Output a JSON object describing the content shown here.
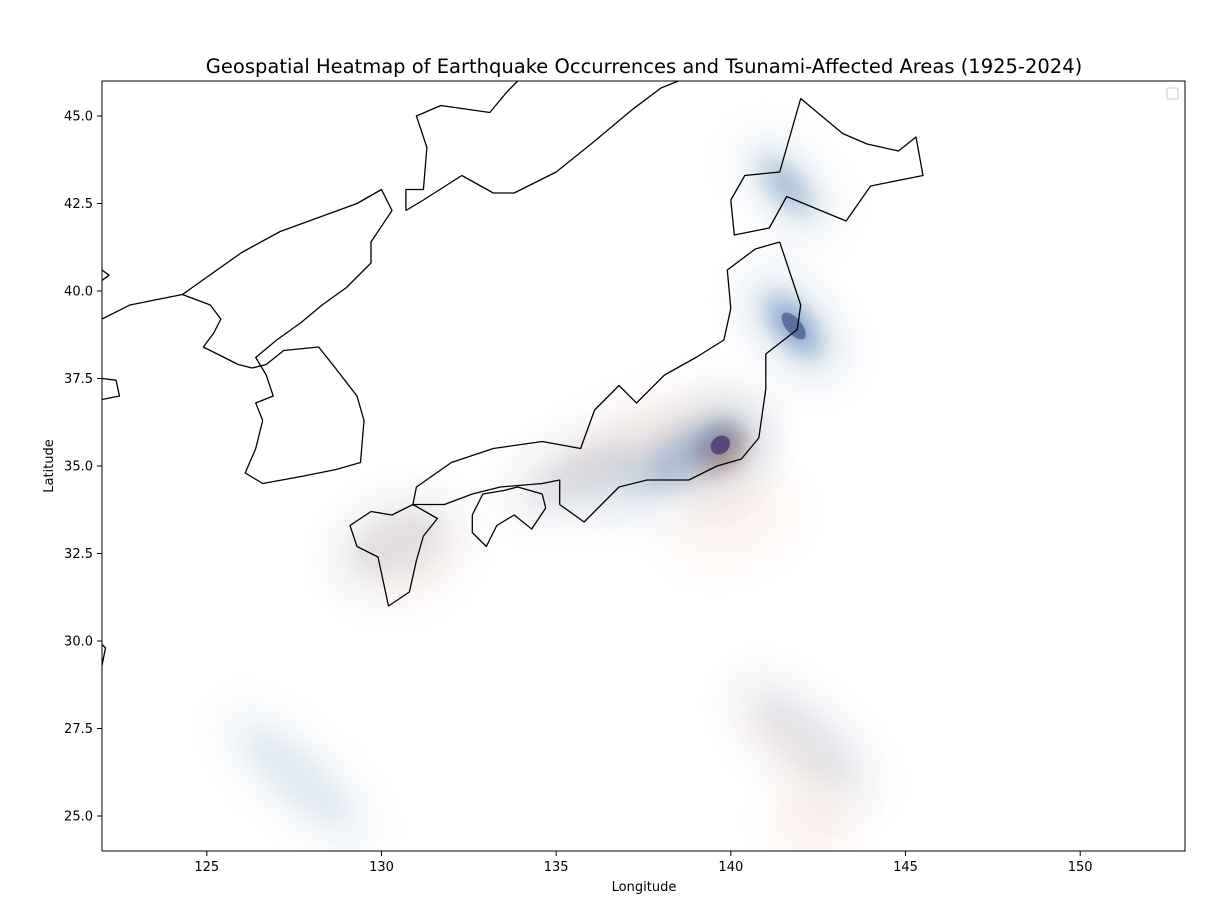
{
  "chart_data": {
    "type": "heatmap",
    "title": "Geospatial Heatmap of Earthquake Occurrences and Tsunami-Affected Areas (1925-2024)",
    "xlabel": "Longitude",
    "ylabel": "Latitude",
    "xlim": [
      122,
      153
    ],
    "ylim": [
      24,
      46
    ],
    "x_ticks": [
      125,
      130,
      135,
      140,
      145,
      150
    ],
    "y_ticks": [
      25.0,
      27.5,
      30.0,
      32.5,
      35.0,
      37.5,
      40.0,
      42.5,
      45.0
    ],
    "x_tick_labels": [
      "125",
      "130",
      "135",
      "140",
      "145",
      "150"
    ],
    "y_tick_labels": [
      "25.0",
      "27.5",
      "30.0",
      "32.5",
      "35.0",
      "37.5",
      "40.0",
      "42.5",
      "45.0"
    ],
    "grid": false,
    "legend": {
      "placement": "top-right",
      "entries": []
    },
    "colors": {
      "earthquake": "#3b6fa8",
      "tsunami": "#e07a4f",
      "coastline": "#000000"
    },
    "series": [
      {
        "kind": "earthquake-density",
        "hotspots": [
          {
            "lon": 139.7,
            "lat": 35.6,
            "slon": 0.55,
            "slat": 0.45,
            "rot": -40,
            "w": 1.0
          },
          {
            "lon": 138.6,
            "lat": 35.2,
            "slon": 1.3,
            "slat": 0.6,
            "rot": -28,
            "w": 0.45
          },
          {
            "lon": 141.8,
            "lat": 39.0,
            "slon": 0.45,
            "slat": 0.85,
            "rot": -40,
            "w": 0.8
          },
          {
            "lon": 141.6,
            "lat": 43.0,
            "slon": 0.45,
            "slat": 0.85,
            "rot": -40,
            "w": 0.5
          },
          {
            "lon": 135.8,
            "lat": 34.7,
            "slon": 1.1,
            "slat": 0.5,
            "rot": -20,
            "w": 0.25
          },
          {
            "lon": 130.4,
            "lat": 32.8,
            "slon": 0.9,
            "slat": 0.5,
            "rot": -25,
            "w": 0.18
          },
          {
            "lon": 127.6,
            "lat": 26.1,
            "slon": 0.45,
            "slat": 1.3,
            "rot": -48,
            "w": 0.2
          },
          {
            "lon": 142.2,
            "lat": 27.2,
            "slon": 0.45,
            "slat": 1.2,
            "rot": -48,
            "w": 0.15
          }
        ]
      },
      {
        "kind": "tsunami-density",
        "hotspots": [
          {
            "lon": 139.8,
            "lat": 35.4,
            "slon": 0.65,
            "slat": 0.45,
            "rot": -40,
            "w": 0.5
          },
          {
            "lon": 137.0,
            "lat": 35.6,
            "slon": 1.6,
            "slat": 0.5,
            "rot": -25,
            "w": 0.12
          },
          {
            "lon": 130.6,
            "lat": 32.6,
            "slon": 0.9,
            "slat": 0.7,
            "rot": -25,
            "w": 0.12
          },
          {
            "lon": 142.3,
            "lat": 24.8,
            "slon": 0.6,
            "slat": 0.5,
            "rot": 0,
            "w": 0.1
          },
          {
            "lon": 141.8,
            "lat": 27.0,
            "slon": 0.45,
            "slat": 1.1,
            "rot": -48,
            "w": 0.08
          },
          {
            "lon": 140.0,
            "lat": 33.5,
            "slon": 0.9,
            "slat": 0.6,
            "rot": -20,
            "w": 0.08
          }
        ]
      }
    ],
    "coastlines": [
      {
        "name": "Asian mainland coast",
        "points": [
          [
            122,
            39.2
          ],
          [
            122.8,
            39.6
          ],
          [
            124.3,
            39.9
          ],
          [
            125.1,
            39.6
          ],
          [
            125.4,
            39.2
          ],
          [
            125.2,
            38.8
          ],
          [
            124.9,
            38.4
          ],
          [
            125.3,
            38.2
          ],
          [
            125.9,
            37.9
          ],
          [
            126.3,
            37.8
          ],
          [
            126.7,
            37.9
          ],
          [
            127.2,
            38.3
          ],
          [
            128.2,
            38.4
          ],
          [
            128.6,
            37.9
          ],
          [
            129.3,
            37.0
          ],
          [
            129.5,
            36.3
          ],
          [
            129.4,
            35.1
          ],
          [
            128.7,
            34.9
          ],
          [
            127.7,
            34.7
          ],
          [
            126.6,
            34.5
          ],
          [
            126.1,
            34.8
          ],
          [
            126.4,
            35.5
          ],
          [
            126.6,
            36.3
          ],
          [
            126.4,
            36.8
          ],
          [
            126.9,
            37.0
          ],
          [
            126.7,
            37.6
          ],
          [
            126.4,
            38.1
          ],
          [
            127.0,
            38.6
          ],
          [
            127.7,
            39.1
          ],
          [
            128.3,
            39.6
          ],
          [
            129.0,
            40.1
          ],
          [
            129.7,
            40.8
          ],
          [
            129.7,
            41.4
          ],
          [
            130.3,
            42.3
          ],
          [
            130.0,
            42.9
          ],
          [
            129.3,
            42.5
          ],
          [
            128.2,
            42.1
          ],
          [
            127.1,
            41.7
          ],
          [
            126.0,
            41.1
          ],
          [
            124.3,
            39.9
          ]
        ]
      },
      {
        "name": "Russian coast",
        "points": [
          [
            130.7,
            42.3
          ],
          [
            131.2,
            42.6
          ],
          [
            132.3,
            43.3
          ],
          [
            133.2,
            42.8
          ],
          [
            133.8,
            42.8
          ],
          [
            135.0,
            43.4
          ],
          [
            136.0,
            44.2
          ],
          [
            137.2,
            45.2
          ],
          [
            138.0,
            45.8
          ],
          [
            138.5,
            46.0
          ]
        ]
      },
      {
        "name": "Inland border",
        "points": [
          [
            130.7,
            42.3
          ],
          [
            130.7,
            42.9
          ],
          [
            131.2,
            42.9
          ],
          [
            131.3,
            44.1
          ],
          [
            131.0,
            45.0
          ],
          [
            131.7,
            45.3
          ],
          [
            133.1,
            45.1
          ],
          [
            133.6,
            45.7
          ],
          [
            133.9,
            46.0
          ]
        ]
      },
      {
        "name": "Honshu",
        "points": [
          [
            141.4,
            41.4
          ],
          [
            140.7,
            41.2
          ],
          [
            139.9,
            40.6
          ],
          [
            140.0,
            39.5
          ],
          [
            139.8,
            38.6
          ],
          [
            139.0,
            38.1
          ],
          [
            138.1,
            37.6
          ],
          [
            137.3,
            36.8
          ],
          [
            136.8,
            37.3
          ],
          [
            136.1,
            36.6
          ],
          [
            135.7,
            35.5
          ],
          [
            134.6,
            35.7
          ],
          [
            133.2,
            35.5
          ],
          [
            132.0,
            35.1
          ],
          [
            131.0,
            34.4
          ],
          [
            130.9,
            33.9
          ],
          [
            131.8,
            33.9
          ],
          [
            132.6,
            34.2
          ],
          [
            133.4,
            34.4
          ],
          [
            134.6,
            34.5
          ],
          [
            135.1,
            34.6
          ],
          [
            135.1,
            33.9
          ],
          [
            135.8,
            33.4
          ],
          [
            136.8,
            34.4
          ],
          [
            137.6,
            34.6
          ],
          [
            138.8,
            34.6
          ],
          [
            139.6,
            35.0
          ],
          [
            140.3,
            35.2
          ],
          [
            140.8,
            35.8
          ],
          [
            140.9,
            36.5
          ],
          [
            141.0,
            37.2
          ],
          [
            141.0,
            38.2
          ],
          [
            141.9,
            38.9
          ],
          [
            142.0,
            39.6
          ],
          [
            141.7,
            40.5
          ],
          [
            141.4,
            41.4
          ]
        ]
      },
      {
        "name": "Hokkaido",
        "points": [
          [
            140.0,
            42.6
          ],
          [
            140.4,
            43.3
          ],
          [
            141.4,
            43.4
          ],
          [
            141.8,
            44.8
          ],
          [
            142.0,
            45.5
          ],
          [
            143.2,
            44.5
          ],
          [
            143.9,
            44.2
          ],
          [
            144.8,
            44.0
          ],
          [
            145.3,
            44.4
          ],
          [
            145.5,
            43.3
          ],
          [
            144.0,
            43.0
          ],
          [
            143.3,
            42.0
          ],
          [
            141.6,
            42.7
          ],
          [
            141.1,
            41.8
          ],
          [
            140.1,
            41.6
          ],
          [
            140.0,
            42.6
          ]
        ]
      },
      {
        "name": "Shikoku",
        "points": [
          [
            132.6,
            33.6
          ],
          [
            132.6,
            33.1
          ],
          [
            133.0,
            32.7
          ],
          [
            133.3,
            33.3
          ],
          [
            133.8,
            33.6
          ],
          [
            134.3,
            33.2
          ],
          [
            134.7,
            33.8
          ],
          [
            134.6,
            34.2
          ],
          [
            133.9,
            34.4
          ],
          [
            133.5,
            34.3
          ],
          [
            132.9,
            34.2
          ],
          [
            132.6,
            33.6
          ]
        ]
      },
      {
        "name": "Kyushu",
        "points": [
          [
            129.7,
            33.7
          ],
          [
            130.3,
            33.6
          ],
          [
            130.9,
            33.9
          ],
          [
            131.6,
            33.5
          ],
          [
            131.2,
            33.0
          ],
          [
            131.0,
            32.3
          ],
          [
            130.8,
            31.4
          ],
          [
            130.2,
            31.0
          ],
          [
            129.9,
            32.4
          ],
          [
            129.3,
            32.7
          ],
          [
            129.1,
            33.3
          ],
          [
            129.7,
            33.7
          ]
        ]
      },
      {
        "name": "West edge 1",
        "points": [
          [
            122.0,
            40.6
          ],
          [
            122.2,
            40.45
          ],
          [
            122.0,
            40.3
          ]
        ]
      },
      {
        "name": "West edge 2",
        "points": [
          [
            122.0,
            37.5
          ],
          [
            122.4,
            37.45
          ],
          [
            122.5,
            37.0
          ],
          [
            122.0,
            36.9
          ]
        ]
      },
      {
        "name": "West edge 3",
        "points": [
          [
            122.0,
            29.9
          ],
          [
            122.1,
            29.8
          ],
          [
            122.0,
            29.3
          ]
        ]
      }
    ]
  }
}
